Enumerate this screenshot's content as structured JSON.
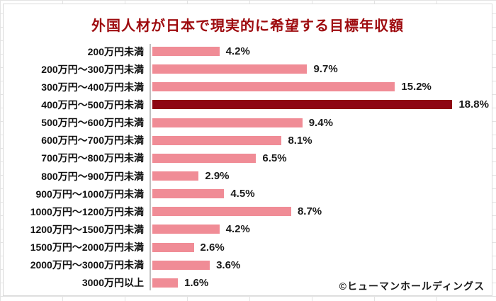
{
  "title": "外国人材が日本で現実的に希望する目標年収額",
  "credit": "©ヒューマンホールディングス",
  "colors": {
    "title": "#9e0b0f",
    "bar": "#f08c96",
    "bar_highlight": "#8e0613",
    "axis": "#bfbfbf",
    "category_text": "#111111",
    "value_text": "#1a1a1a"
  },
  "chart_data": {
    "type": "bar",
    "orientation": "horizontal",
    "title": "外国人材が日本で現実的に希望する目標年収額",
    "categories": [
      "200万円未満",
      "200万円～300万円未満",
      "300万円～400万円未満",
      "400万円～500万円未満",
      "500万円～600万円未満",
      "600万円～700万円未満",
      "700万円～800万円未満",
      "800万円～900万円未満",
      "900万円～1000万円未満",
      "1000万円～1200万円未満",
      "1200万円～1500万円未満",
      "1500万円～2000万円未満",
      "2000万円～3000万円未満",
      "3000万円以上"
    ],
    "values": [
      4.2,
      9.7,
      15.2,
      18.8,
      9.4,
      8.1,
      6.5,
      2.9,
      4.5,
      8.7,
      4.2,
      2.6,
      3.6,
      1.6
    ],
    "value_suffix": "%",
    "highlight_index": 3,
    "xlim": [
      0,
      21
    ],
    "grid": false,
    "legend": false,
    "value_labels_position": "end-of-bar"
  }
}
